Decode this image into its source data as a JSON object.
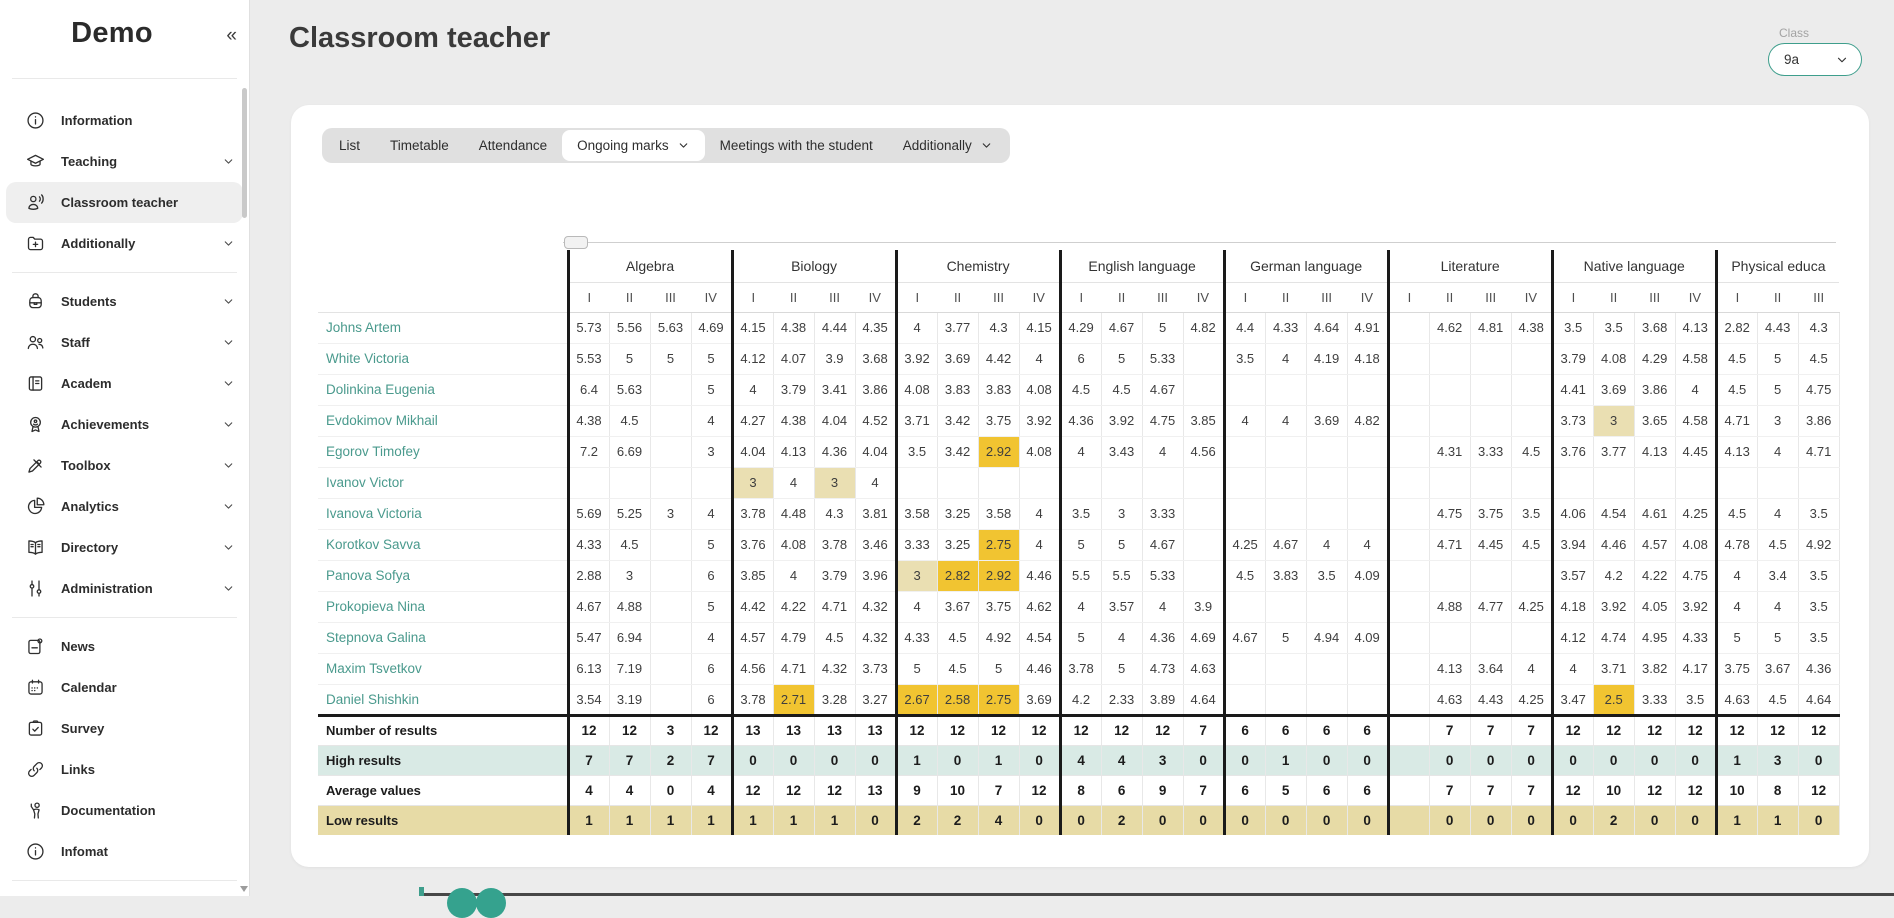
{
  "sidebar": {
    "logo": "Demo",
    "collapse_glyph": "«",
    "groups": [
      {
        "items": [
          {
            "label": "Information",
            "icon": "info-icon",
            "chevron": false,
            "selected": false
          },
          {
            "label": "Teaching",
            "icon": "teaching-icon",
            "chevron": true,
            "selected": false
          },
          {
            "label": "Classroom teacher",
            "icon": "classroom-teacher-icon",
            "chevron": false,
            "selected": true
          },
          {
            "label": "Additionally",
            "icon": "additionally-icon",
            "chevron": true,
            "selected": false
          }
        ]
      },
      {
        "items": [
          {
            "label": "Students",
            "icon": "students-icon",
            "chevron": true,
            "selected": false
          },
          {
            "label": "Staff",
            "icon": "staff-icon",
            "chevron": true,
            "selected": false
          },
          {
            "label": "Academ",
            "icon": "academ-icon",
            "chevron": true,
            "selected": false
          },
          {
            "label": "Achievements",
            "icon": "achievements-icon",
            "chevron": true,
            "selected": false
          },
          {
            "label": "Toolbox",
            "icon": "toolbox-icon",
            "chevron": true,
            "selected": false
          },
          {
            "label": "Analytics",
            "icon": "analytics-icon",
            "chevron": true,
            "selected": false
          },
          {
            "label": "Directory",
            "icon": "directory-icon",
            "chevron": true,
            "selected": false
          },
          {
            "label": "Administration",
            "icon": "administration-icon",
            "chevron": true,
            "selected": false
          }
        ]
      },
      {
        "items": [
          {
            "label": "News",
            "icon": "news-icon",
            "chevron": false,
            "selected": false
          },
          {
            "label": "Calendar",
            "icon": "calendar-icon",
            "chevron": false,
            "selected": false
          },
          {
            "label": "Survey",
            "icon": "survey-icon",
            "chevron": false,
            "selected": false
          },
          {
            "label": "Links",
            "icon": "links-icon",
            "chevron": false,
            "selected": false
          },
          {
            "label": "Documentation",
            "icon": "documentation-icon",
            "chevron": false,
            "selected": false
          },
          {
            "label": "Infomat",
            "icon": "infomat-icon",
            "chevron": false,
            "selected": false
          }
        ]
      }
    ]
  },
  "header": {
    "title": "Classroom teacher"
  },
  "class_select": {
    "label": "Class",
    "value": "9a"
  },
  "tabs": [
    {
      "label": "List",
      "chevron": false,
      "active": false
    },
    {
      "label": "Timetable",
      "chevron": false,
      "active": false
    },
    {
      "label": "Attendance",
      "chevron": false,
      "active": false
    },
    {
      "label": "Ongoing marks",
      "chevron": true,
      "active": true
    },
    {
      "label": "Meetings with the student",
      "chevron": false,
      "active": false
    },
    {
      "label": "Additionally",
      "chevron": true,
      "active": false
    }
  ],
  "grades_table": {
    "subjects": [
      {
        "name": "Algebra",
        "quarters": [
          "I",
          "II",
          "III",
          "IV"
        ]
      },
      {
        "name": "Biology",
        "quarters": [
          "I",
          "II",
          "III",
          "IV"
        ]
      },
      {
        "name": "Chemistry",
        "quarters": [
          "I",
          "II",
          "III",
          "IV"
        ]
      },
      {
        "name": "English language",
        "quarters": [
          "I",
          "II",
          "III",
          "IV"
        ]
      },
      {
        "name": "German language",
        "quarters": [
          "I",
          "II",
          "III",
          "IV"
        ]
      },
      {
        "name": "Literature",
        "quarters": [
          "I",
          "II",
          "III",
          "IV"
        ]
      },
      {
        "name": "Native language",
        "quarters": [
          "I",
          "II",
          "III",
          "IV"
        ]
      },
      {
        "name": "Physical educa",
        "quarters": [
          "I",
          "II",
          "III"
        ]
      }
    ],
    "students": [
      {
        "name": "Johns Artem",
        "marks": [
          "5.73",
          "5.56",
          "5.63",
          "4.69",
          "4.15",
          "4.38",
          "4.44",
          "4.35",
          "4",
          "3.77",
          "4.3",
          "4.15",
          "4.29",
          "4.67",
          "5",
          "4.82",
          "4.4",
          "4.33",
          "4.64",
          "4.91",
          "",
          "4.62",
          "4.81",
          "4.38",
          "3.5",
          "3.5",
          "3.68",
          "4.13",
          "2.82",
          "4.43",
          "4.3"
        ]
      },
      {
        "name": "White Victoria",
        "marks": [
          "5.53",
          "5",
          "5",
          "5",
          "4.12",
          "4.07",
          "3.9",
          "3.68",
          "3.92",
          "3.69",
          "4.42",
          "4",
          "6",
          "5",
          "5.33",
          "",
          "3.5",
          "4",
          "4.19",
          "4.18",
          "",
          "",
          "",
          "",
          "3.79",
          "4.08",
          "4.29",
          "4.58",
          "4.5",
          "5",
          "4.5"
        ]
      },
      {
        "name": "Dolinkina Eugenia",
        "marks": [
          "6.4",
          "5.63",
          "",
          "5",
          "4",
          "3.79",
          "3.41",
          "3.86",
          "4.08",
          "3.83",
          "3.83",
          "4.08",
          "4.5",
          "4.5",
          "4.67",
          "",
          "",
          "",
          "",
          "",
          "",
          "",
          "",
          "",
          "4.41",
          "3.69",
          "3.86",
          "4",
          "4.5",
          "5",
          "4.75"
        ]
      },
      {
        "name": "Evdokimov Mikhail",
        "marks": [
          "4.38",
          "4.5",
          "",
          "4",
          "4.27",
          "4.38",
          "4.04",
          "4.52",
          "3.71",
          "3.42",
          "3.75",
          "3.92",
          "4.36",
          "3.92",
          "4.75",
          "3.85",
          "4",
          "4",
          "3.69",
          "4.82",
          "",
          "",
          "",
          "",
          "3.73",
          "3|t",
          "3.65",
          "4.58",
          "4.71",
          "3",
          "3.86"
        ]
      },
      {
        "name": "Egorov Timofey",
        "marks": [
          "7.2",
          "6.69",
          "",
          "3",
          "4.04",
          "4.13",
          "4.36",
          "4.04",
          "3.5",
          "3.42",
          "2.92|g",
          "4.08",
          "4",
          "3.43",
          "4",
          "4.56",
          "",
          "",
          "",
          "",
          "",
          "4.31",
          "3.33",
          "4.5",
          "3.76",
          "3.77",
          "4.13",
          "4.45",
          "4.13",
          "4",
          "4.71"
        ]
      },
      {
        "name": "Ivanov Victor",
        "marks": [
          "",
          "",
          "",
          "",
          "3|t",
          "4",
          "3|t",
          "4",
          "",
          "",
          "",
          "",
          "",
          "",
          "",
          "",
          "",
          "",
          "",
          "",
          "",
          "",
          "",
          "",
          "",
          "",
          "",
          "",
          "",
          "",
          ""
        ]
      },
      {
        "name": "Ivanova Victoria",
        "marks": [
          "5.69",
          "5.25",
          "3",
          "4",
          "3.78",
          "4.48",
          "4.3",
          "3.81",
          "3.58",
          "3.25",
          "3.58",
          "4",
          "3.5",
          "3",
          "3.33",
          "",
          "",
          "",
          "",
          "",
          "",
          "4.75",
          "3.75",
          "3.5",
          "4.06",
          "4.54",
          "4.61",
          "4.25",
          "4.5",
          "4",
          "3.5"
        ]
      },
      {
        "name": "Korotkov Savva",
        "marks": [
          "4.33",
          "4.5",
          "",
          "5",
          "3.76",
          "4.08",
          "3.78",
          "3.46",
          "3.33",
          "3.25",
          "2.75|g",
          "4",
          "5",
          "5",
          "4.67",
          "",
          "4.25",
          "4.67",
          "4",
          "4",
          "",
          "4.71",
          "4.45",
          "4.5",
          "3.94",
          "4.46",
          "4.57",
          "4.08",
          "4.78",
          "4.5",
          "4.92"
        ]
      },
      {
        "name": "Panova Sofya",
        "marks": [
          "2.88",
          "3",
          "",
          "6",
          "3.85",
          "4",
          "3.79",
          "3.96",
          "3|t",
          "2.82|g",
          "2.92|g",
          "4.46",
          "5.5",
          "5.5",
          "5.33",
          "",
          "4.5",
          "3.83",
          "3.5",
          "4.09",
          "",
          "",
          "",
          "",
          "3.57",
          "4.2",
          "4.22",
          "4.75",
          "4",
          "3.4",
          "3.5"
        ]
      },
      {
        "name": "Prokopieva Nina",
        "marks": [
          "4.67",
          "4.88",
          "",
          "5",
          "4.42",
          "4.22",
          "4.71",
          "4.32",
          "4",
          "3.67",
          "3.75",
          "4.62",
          "4",
          "3.57",
          "4",
          "3.9",
          "",
          "",
          "",
          "",
          "",
          "4.88",
          "4.77",
          "4.25",
          "4.18",
          "3.92",
          "4.05",
          "3.92",
          "4",
          "4",
          "3.5"
        ]
      },
      {
        "name": "Stepnova Galina",
        "marks": [
          "5.47",
          "6.94",
          "",
          "4",
          "4.57",
          "4.79",
          "4.5",
          "4.32",
          "4.33",
          "4.5",
          "4.92",
          "4.54",
          "5",
          "4",
          "4.36",
          "4.69",
          "4.67",
          "5",
          "4.94",
          "4.09",
          "",
          "",
          "",
          "",
          "4.12",
          "4.74",
          "4.95",
          "4.33",
          "5",
          "5",
          "3.5"
        ]
      },
      {
        "name": "Maxim Tsvetkov",
        "marks": [
          "6.13",
          "7.19",
          "",
          "6",
          "4.56",
          "4.71",
          "4.32",
          "3.73",
          "5",
          "4.5",
          "5",
          "4.46",
          "3.78",
          "5",
          "4.73",
          "4.63",
          "",
          "",
          "",
          "",
          "",
          "4.13",
          "3.64",
          "4",
          "4",
          "3.71",
          "3.82",
          "4.17",
          "3.75",
          "3.67",
          "4.36"
        ]
      },
      {
        "name": "Daniel Shishkin",
        "marks": [
          "3.54",
          "3.19",
          "",
          "6",
          "3.78",
          "2.71|g",
          "3.28",
          "3.27",
          "2.67|g",
          "2.58|g",
          "2.75|g",
          "3.69",
          "4.2",
          "2.33",
          "3.89",
          "4.64",
          "",
          "",
          "",
          "",
          "",
          "4.63",
          "4.43",
          "4.25",
          "3.47",
          "2.5|g",
          "3.33",
          "3.5",
          "4.63",
          "4.5",
          "4.64"
        ]
      }
    ],
    "summary_rows": [
      {
        "label": "Number of results",
        "style": "plain",
        "values": [
          "12",
          "12",
          "3",
          "12",
          "13",
          "13",
          "13",
          "13",
          "12",
          "12",
          "12",
          "12",
          "12",
          "12",
          "12",
          "7",
          "6",
          "6",
          "6",
          "6",
          "",
          "7",
          "7",
          "7",
          "12",
          "12",
          "12",
          "12",
          "12",
          "12",
          "12"
        ]
      },
      {
        "label": "High results",
        "style": "high",
        "values": [
          "7",
          "7",
          "2",
          "7",
          "0",
          "0",
          "0",
          "0",
          "1",
          "0",
          "1",
          "0",
          "4",
          "4",
          "3",
          "0",
          "0",
          "1",
          "0",
          "0",
          "",
          "0",
          "0",
          "0",
          "0",
          "0",
          "0",
          "0",
          "1",
          "3",
          "0"
        ]
      },
      {
        "label": "Average values",
        "style": "plain",
        "values": [
          "4",
          "4",
          "0",
          "4",
          "12",
          "12",
          "12",
          "13",
          "9",
          "10",
          "7",
          "12",
          "8",
          "6",
          "9",
          "7",
          "6",
          "5",
          "6",
          "6",
          "",
          "7",
          "7",
          "7",
          "12",
          "10",
          "12",
          "12",
          "10",
          "8",
          "12"
        ]
      },
      {
        "label": "Low results",
        "style": "low",
        "values": [
          "1",
          "1",
          "1",
          "1",
          "1",
          "1",
          "1",
          "0",
          "2",
          "2",
          "4",
          "0",
          "0",
          "2",
          "0",
          "0",
          "0",
          "0",
          "0",
          "0",
          "",
          "0",
          "0",
          "0",
          "0",
          "2",
          "0",
          "0",
          "1",
          "1",
          "0"
        ]
      }
    ]
  },
  "colors": {
    "accent_teal": "#3e9e8c",
    "student_link": "#4a9a8d",
    "highlight_gold": "#f1c431",
    "highlight_tan": "#eadfb2",
    "high_row_bg": "#d9eae5",
    "low_row_bg": "#e7dba6"
  }
}
